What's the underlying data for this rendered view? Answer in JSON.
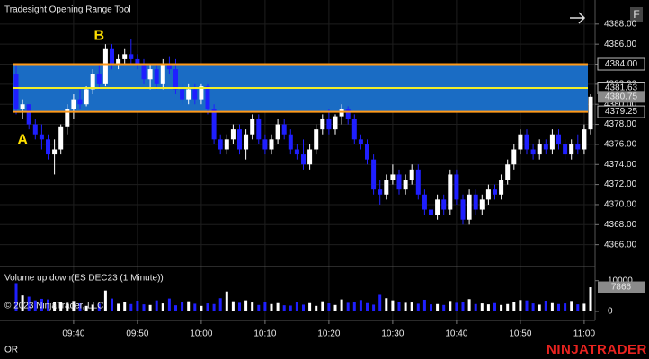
{
  "chart_data": {
    "type": "candlestick",
    "title": "Tradesight Opening Range Tool",
    "x": [
      "09:31",
      "09:32",
      "09:33",
      "09:34",
      "09:35",
      "09:36",
      "09:37",
      "09:38",
      "09:39",
      "09:40",
      "09:41",
      "09:42",
      "09:43",
      "09:44",
      "09:45",
      "09:46",
      "09:47",
      "09:48",
      "09:49",
      "09:50",
      "09:51",
      "09:52",
      "09:53",
      "09:54",
      "09:55",
      "09:56",
      "09:57",
      "09:58",
      "09:59",
      "10:00",
      "10:01",
      "10:02",
      "10:03",
      "10:04",
      "10:05",
      "10:06",
      "10:07",
      "10:08",
      "10:09",
      "10:10",
      "10:11",
      "10:12",
      "10:13",
      "10:14",
      "10:15",
      "10:16",
      "10:17",
      "10:18",
      "10:19",
      "10:20",
      "10:21",
      "10:22",
      "10:23",
      "10:24",
      "10:25",
      "10:26",
      "10:27",
      "10:28",
      "10:29",
      "10:30",
      "10:31",
      "10:32",
      "10:33",
      "10:34",
      "10:35",
      "10:36",
      "10:37",
      "10:38",
      "10:39",
      "10:40",
      "10:41",
      "10:42",
      "10:43",
      "10:44",
      "10:45",
      "10:46",
      "10:47",
      "10:48",
      "10:49",
      "10:50",
      "10:51",
      "10:52",
      "10:53",
      "10:54",
      "10:55",
      "10:56",
      "10:57",
      "10:58",
      "10:59",
      "11:00",
      "11:01"
    ],
    "ohlc": [
      [
        4383,
        4384,
        4379,
        4379.5
      ],
      [
        4379.5,
        4380.5,
        4378.5,
        4380
      ],
      [
        4380,
        4380,
        4377.5,
        4378
      ],
      [
        4378,
        4378.5,
        4376.5,
        4377
      ],
      [
        4377,
        4378,
        4375.5,
        4376.5
      ],
      [
        4376.5,
        4377,
        4374.5,
        4375
      ],
      [
        4375,
        4376.5,
        4373,
        4375.5
      ],
      [
        4375.5,
        4378,
        4375,
        4377.8
      ],
      [
        4377.8,
        4380,
        4377,
        4379.5
      ],
      [
        4379.5,
        4381,
        4378.5,
        4380.5
      ],
      [
        4380.5,
        4381.5,
        4379.5,
        4380
      ],
      [
        4380,
        4381.8,
        4379.8,
        4381.5
      ],
      [
        4381.5,
        4383.5,
        4381,
        4383
      ],
      [
        4383,
        4384,
        4381.5,
        4382
      ],
      [
        4382,
        4386,
        4381.8,
        4385.5
      ],
      [
        4385.5,
        4386,
        4383.5,
        4384
      ],
      [
        4384,
        4385,
        4383.5,
        4384.5
      ],
      [
        4384.5,
        4385.5,
        4384,
        4385
      ],
      [
        4385,
        4386.5,
        4384,
        4384.5
      ],
      [
        4384.5,
        4385,
        4383.5,
        4384
      ],
      [
        4384,
        4384.5,
        4382,
        4382.5
      ],
      [
        4382.5,
        4384,
        4381.5,
        4383.5
      ],
      [
        4383.5,
        4384,
        4381.5,
        4382
      ],
      [
        4382,
        4384.5,
        4381.5,
        4384
      ],
      [
        4384,
        4384.8,
        4383,
        4383.5
      ],
      [
        4383.5,
        4384.5,
        4381,
        4381.5
      ],
      [
        4381.5,
        4382,
        4380,
        4380.5
      ],
      [
        4380.5,
        4382,
        4380,
        4381.5
      ],
      [
        4381.5,
        4382,
        4380,
        4380.5
      ],
      [
        4380.5,
        4382,
        4380,
        4381.8
      ],
      [
        4381.8,
        4382,
        4379,
        4379.5
      ],
      [
        4379.5,
        4380,
        4376,
        4376.5
      ],
      [
        4376.5,
        4377,
        4375,
        4375.5
      ],
      [
        4375.5,
        4377,
        4375,
        4376.5
      ],
      [
        4376.5,
        4378,
        4376,
        4377.5
      ],
      [
        4377.5,
        4378,
        4375,
        4375.5
      ],
      [
        4375.5,
        4377.5,
        4374.5,
        4377
      ],
      [
        4377,
        4379,
        4376.5,
        4378.5
      ],
      [
        4378.5,
        4379,
        4376,
        4376.5
      ],
      [
        4376.5,
        4377,
        4375,
        4375.5
      ],
      [
        4375.5,
        4377,
        4375,
        4376.5
      ],
      [
        4376.5,
        4378.5,
        4376,
        4378
      ],
      [
        4378,
        4378.5,
        4376.5,
        4377
      ],
      [
        4377,
        4377.5,
        4375,
        4375.5
      ],
      [
        4375.5,
        4376,
        4374.5,
        4375
      ],
      [
        4375,
        4376.5,
        4373.5,
        4374
      ],
      [
        4374,
        4376,
        4373.5,
        4375.5
      ],
      [
        4375.5,
        4378,
        4375,
        4377.5
      ],
      [
        4377.5,
        4379,
        4377,
        4378.5
      ],
      [
        4378.5,
        4379.5,
        4377,
        4377.5
      ],
      [
        4377.5,
        4379,
        4377,
        4378.8
      ],
      [
        4378.8,
        4380,
        4378,
        4379.5
      ],
      [
        4379.5,
        4379.8,
        4378,
        4378.5
      ],
      [
        4378.5,
        4379,
        4376,
        4376.5
      ],
      [
        4376.5,
        4377,
        4375.5,
        4376
      ],
      [
        4376,
        4376.5,
        4374,
        4374.5
      ],
      [
        4374.5,
        4375,
        4371,
        4371.5
      ],
      [
        4371.5,
        4372.5,
        4370,
        4371
      ],
      [
        4371,
        4373,
        4370.5,
        4372.5
      ],
      [
        4372.5,
        4374,
        4372,
        4373
      ],
      [
        4373,
        4373.5,
        4371,
        4371.5
      ],
      [
        4371.5,
        4373,
        4371,
        4372.5
      ],
      [
        4372.5,
        4374,
        4372,
        4373.5
      ],
      [
        4373.5,
        4374,
        4370.5,
        4371
      ],
      [
        4371,
        4371.5,
        4369,
        4369.5
      ],
      [
        4369.5,
        4370.5,
        4368.5,
        4369
      ],
      [
        4369,
        4371,
        4368.5,
        4370.5
      ],
      [
        4370.5,
        4371,
        4369,
        4369.5
      ],
      [
        4369.5,
        4373.5,
        4369,
        4373
      ],
      [
        4373,
        4373.5,
        4370,
        4370.5
      ],
      [
        4370.5,
        4371,
        4368,
        4368.5
      ],
      [
        4368.5,
        4371.5,
        4368,
        4371
      ],
      [
        4371,
        4371.5,
        4369,
        4369.5
      ],
      [
        4369.5,
        4371,
        4369,
        4370.5
      ],
      [
        4370.5,
        4372,
        4370,
        4371.5
      ],
      [
        4371.5,
        4372,
        4370.5,
        4371
      ],
      [
        4371,
        4373,
        4370.5,
        4372.5
      ],
      [
        4372.5,
        4374.5,
        4372,
        4374
      ],
      [
        4374,
        4376,
        4373.5,
        4375.5
      ],
      [
        4375.5,
        4377.5,
        4375,
        4377
      ],
      [
        4377,
        4377.5,
        4375,
        4375.5
      ],
      [
        4375.5,
        4376,
        4374.5,
        4375
      ],
      [
        4375,
        4376.5,
        4374.5,
        4376
      ],
      [
        4376,
        4376.5,
        4375,
        4375.5
      ],
      [
        4375.5,
        4377.5,
        4375,
        4377
      ],
      [
        4377,
        4377.5,
        4375.5,
        4376
      ],
      [
        4376,
        4376.5,
        4374.5,
        4375
      ],
      [
        4375,
        4376.5,
        4374.5,
        4376
      ],
      [
        4376,
        4377,
        4375,
        4375.5
      ],
      [
        4375.5,
        4378,
        4375,
        4377.5
      ],
      [
        4377.5,
        4381,
        4377,
        4380.75
      ]
    ],
    "up_color": "#ffffff",
    "down_color": "#1f1fff",
    "ylim": [
      4364,
      4390.4
    ],
    "yticks": [
      {
        "value": 4366,
        "label": "4366.00"
      },
      {
        "value": 4368,
        "label": "4368.00"
      },
      {
        "value": 4370,
        "label": "4370.00"
      },
      {
        "value": 4372,
        "label": "4372.00"
      },
      {
        "value": 4374,
        "label": "4374.00"
      },
      {
        "value": 4376,
        "label": "4376.00"
      },
      {
        "value": 4378,
        "label": "4378.00"
      },
      {
        "value": 4380,
        "label": "4380.00"
      },
      {
        "value": 4382,
        "label": "4382.00"
      },
      {
        "value": 4384,
        "label": "4384.00"
      },
      {
        "value": 4386,
        "label": "4386.00"
      },
      {
        "value": 4388,
        "label": "4388.00"
      }
    ],
    "xticks": [
      "09:40",
      "09:50",
      "10:00",
      "10:10",
      "10:20",
      "10:30",
      "10:40",
      "10:50",
      "11:00"
    ],
    "grid": true,
    "range_fill": "#1a6cc4",
    "hlines": [
      {
        "value": 4384,
        "label": "4384.00",
        "color": "#ff9a1a"
      },
      {
        "value": 4381.63,
        "label": "4381.63",
        "color": "#f2ee2a"
      },
      {
        "value": 4379.25,
        "label": "4379.25",
        "color": "#ff9a1a"
      }
    ],
    "last_price": {
      "value": 4380.75,
      "label": "4380.75"
    },
    "annotations": [
      {
        "text": "A",
        "x": "09:32",
        "y": 4376.4
      },
      {
        "text": "B",
        "x": "09:44",
        "y": 4386.8
      }
    ],
    "volume": {
      "title": "Volume up down(ES DEC23 (1 Minute))",
      "values": [
        9200,
        5200,
        4800,
        3600,
        4100,
        3900,
        3200,
        3000,
        2800,
        3400,
        2600,
        1800,
        2200,
        2500,
        6800,
        4200,
        2500,
        3100,
        2400,
        3500,
        2300,
        2100,
        3600,
        2600,
        4200,
        2000,
        3100,
        3300,
        2500,
        1800,
        2600,
        2400,
        4300,
        6500,
        3300,
        2800,
        3600,
        2900,
        2100,
        3000,
        2400,
        2700,
        2000,
        1900,
        3100,
        2200,
        2700,
        1800,
        3300,
        2600,
        2100,
        3900,
        2800,
        3100,
        3700,
        2700,
        2200,
        5400,
        4300,
        3600,
        3200,
        2800,
        2900,
        2500,
        3800,
        2300,
        2400,
        2100,
        3400,
        2800,
        3200,
        4000,
        2400,
        2600,
        2300,
        2700,
        2100,
        2400,
        3100,
        3700,
        3600,
        2600,
        2200,
        3500,
        2700,
        2400,
        2600,
        3400,
        2300,
        2500,
        7866
      ],
      "ylim": [
        0,
        14000
      ],
      "yticks": [
        0,
        10000
      ],
      "last_label": "7866"
    },
    "copyright": "© 2023 NinjaTrader, LLC",
    "footer_left": "OR",
    "logo": "NINJATRADER",
    "button": "F"
  }
}
